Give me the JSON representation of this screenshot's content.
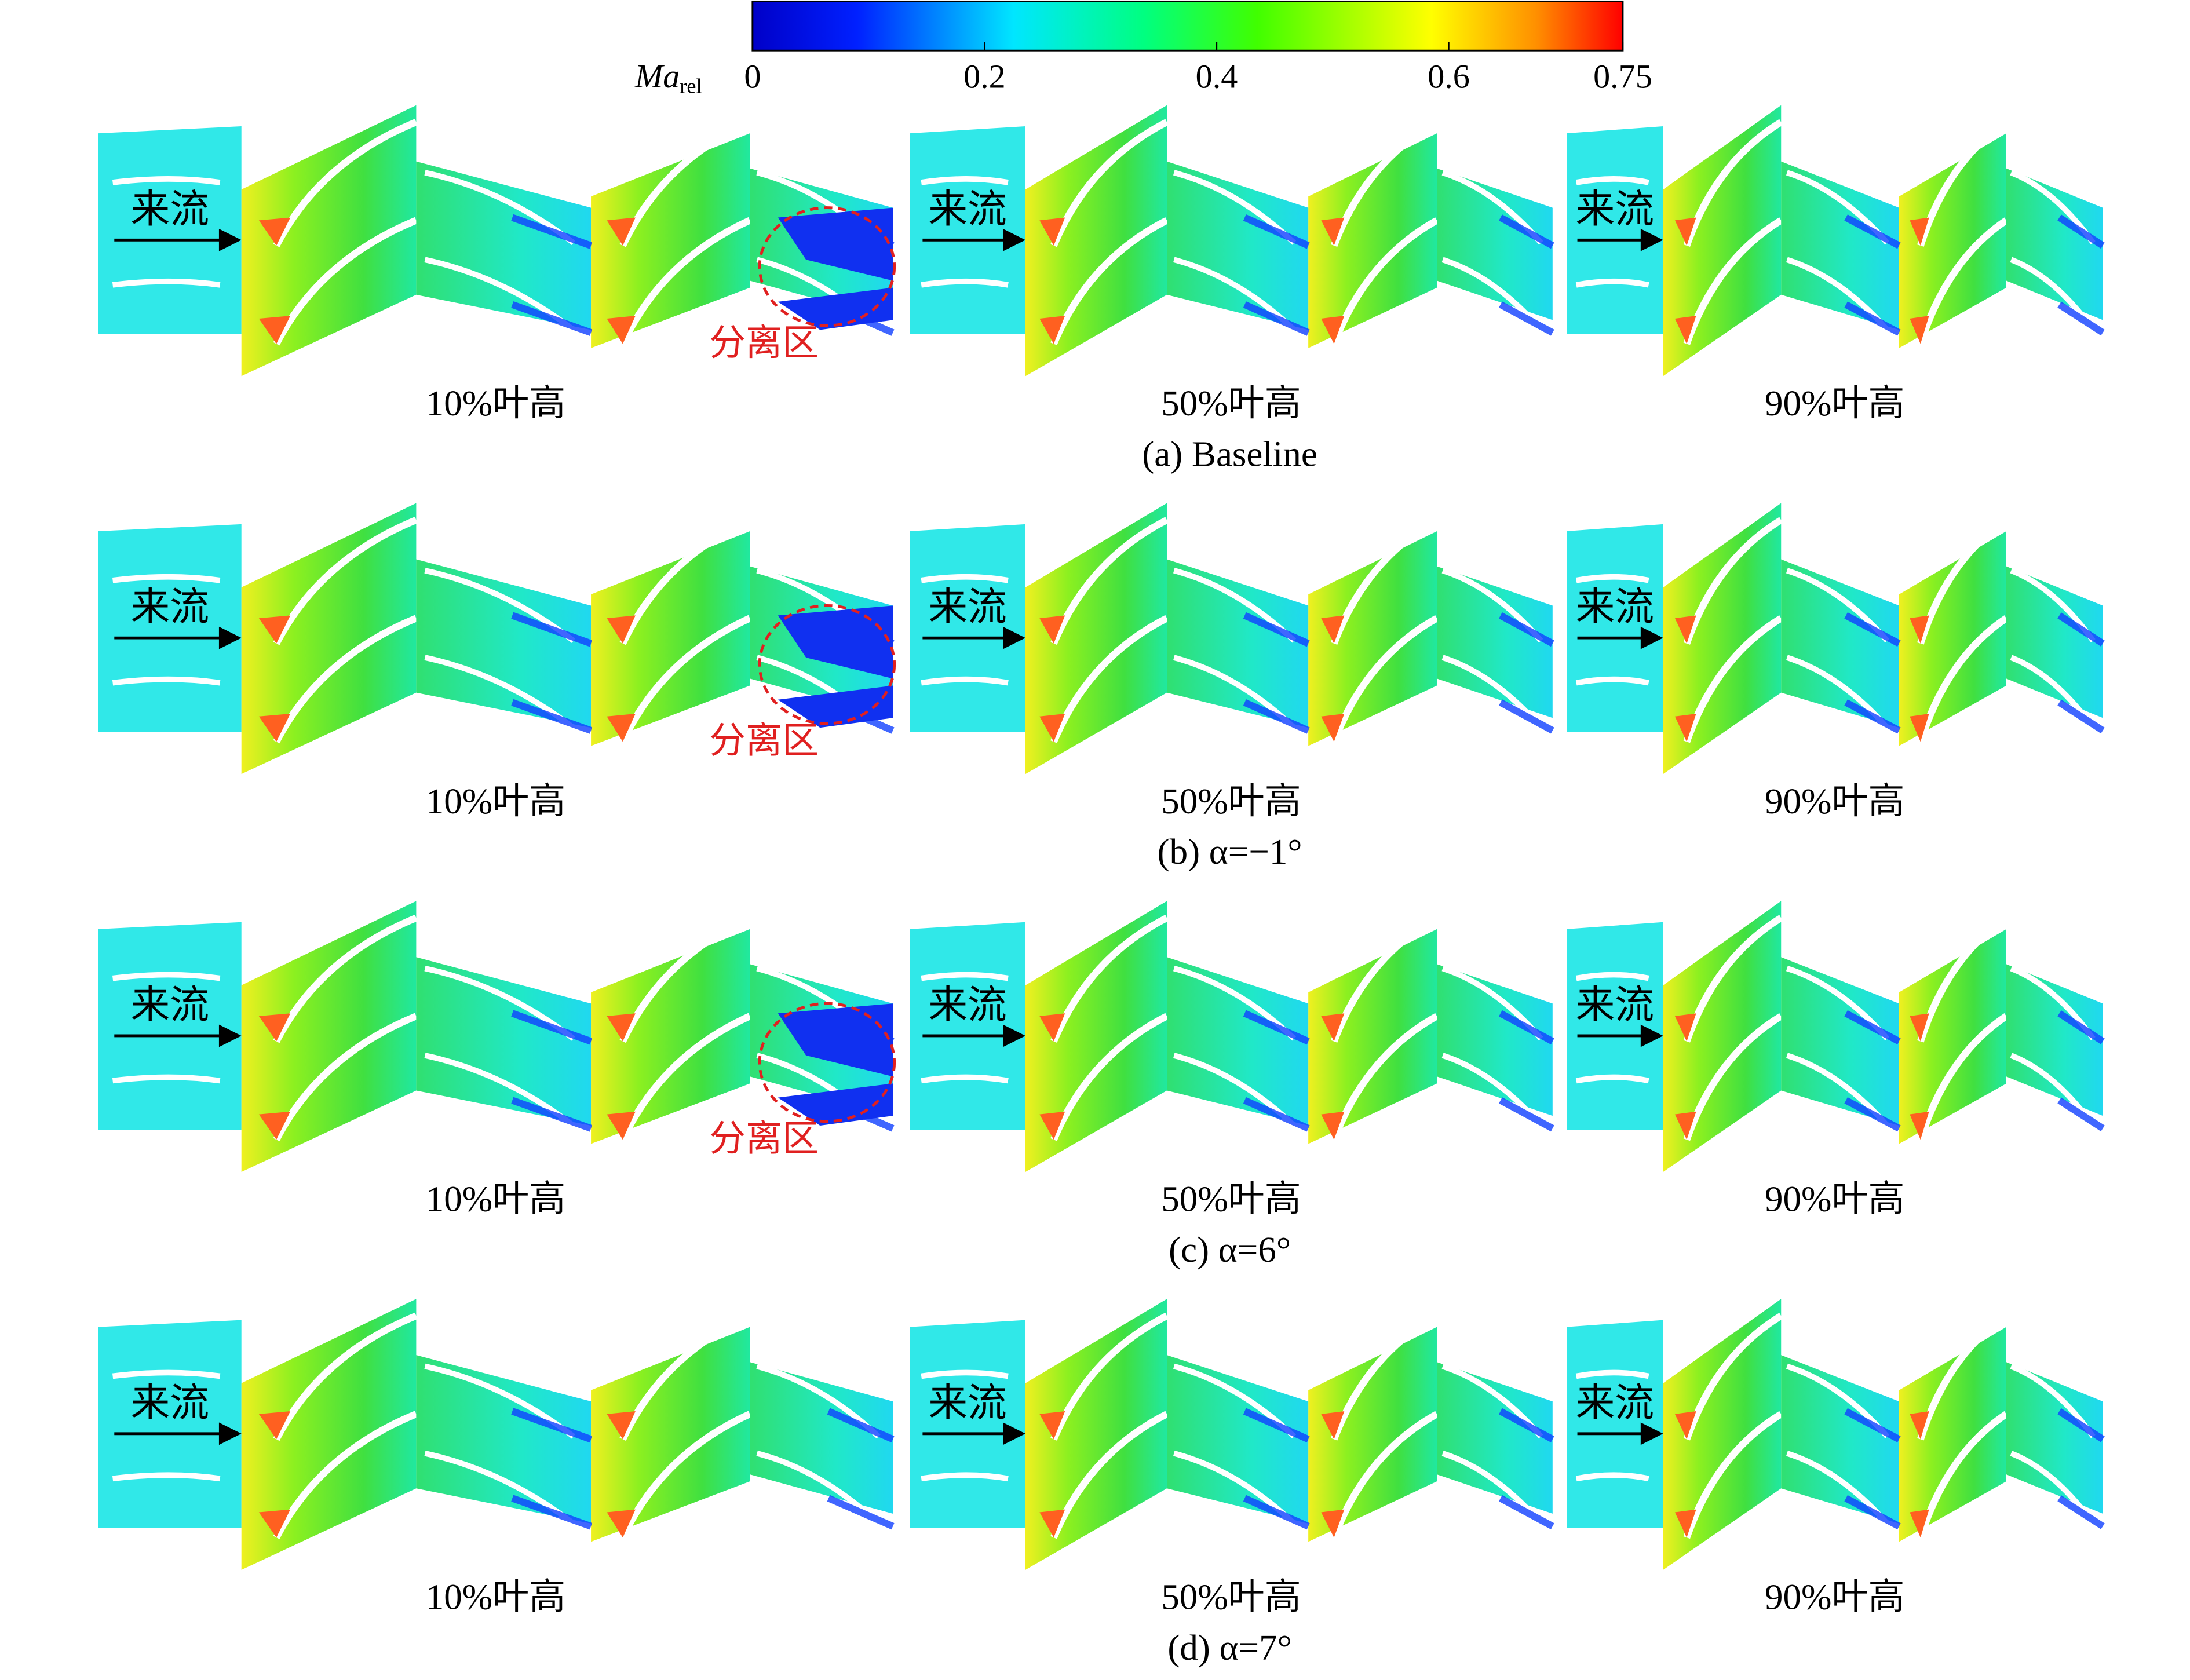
{
  "colorbar": {
    "label": "Ma",
    "label_sub": "rel",
    "range": [
      0,
      0.75
    ],
    "ticks": [
      0,
      0.2,
      0.4,
      0.6,
      0.75
    ]
  },
  "panels": [
    {
      "caption": "(a) Baseline",
      "sections": [
        {
          "label": "10%叶高",
          "inflow": "来流",
          "annotation": "分离区"
        },
        {
          "label": "50%叶高",
          "inflow": "来流"
        },
        {
          "label": "90%叶高",
          "inflow": "来流"
        }
      ]
    },
    {
      "caption": "(b) α=−1°",
      "sections": [
        {
          "label": "10%叶高",
          "inflow": "来流",
          "annotation": "分离区"
        },
        {
          "label": "50%叶高",
          "inflow": "来流"
        },
        {
          "label": "90%叶高",
          "inflow": "来流"
        }
      ]
    },
    {
      "caption": "(c) α=6°",
      "sections": [
        {
          "label": "10%叶高",
          "inflow": "来流",
          "annotation": "分离区"
        },
        {
          "label": "50%叶高",
          "inflow": "来流"
        },
        {
          "label": "90%叶高",
          "inflow": "来流"
        }
      ]
    },
    {
      "caption": "(d) α=7°",
      "sections": [
        {
          "label": "10%叶高",
          "inflow": "来流"
        },
        {
          "label": "50%叶高",
          "inflow": "来流"
        },
        {
          "label": "90%叶高",
          "inflow": "来流"
        }
      ]
    }
  ]
}
